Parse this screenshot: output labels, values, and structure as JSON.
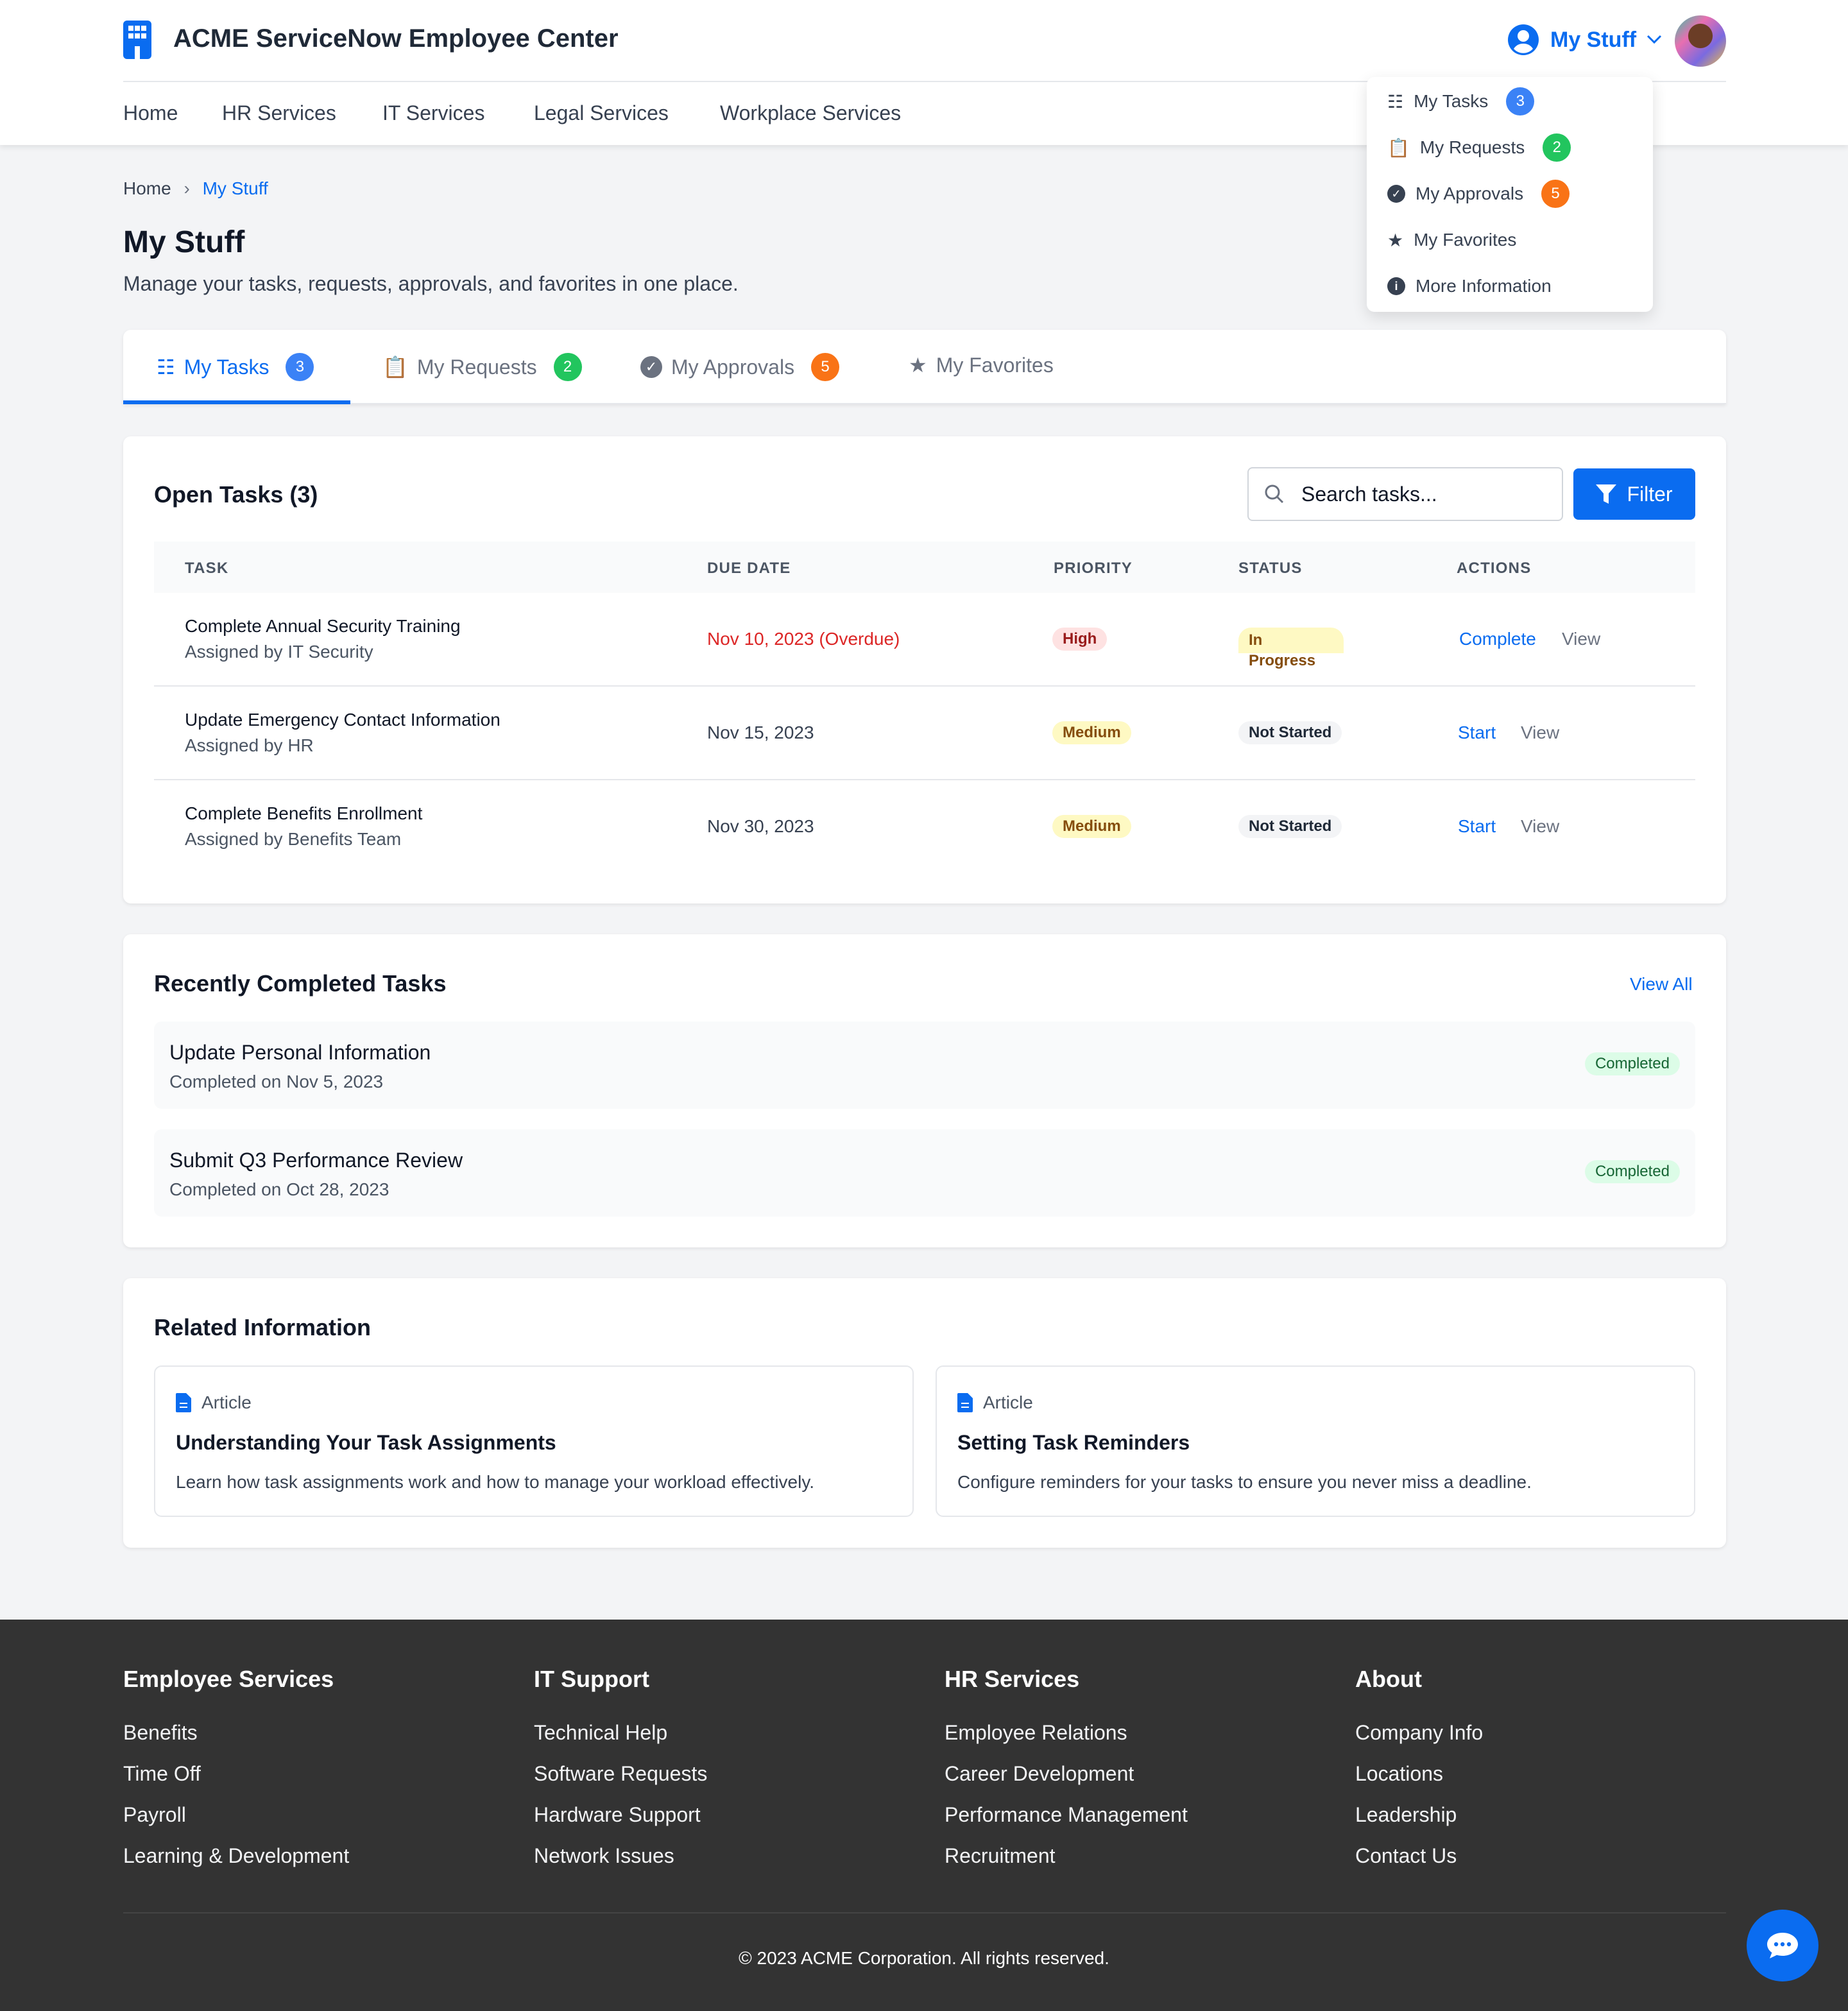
{
  "header": {
    "app_title": "ACME ServiceNow Employee Center",
    "nav": [
      "Home",
      "HR Services",
      "IT Services",
      "Legal Services",
      "Workplace Services"
    ],
    "my_stuff_label": "My Stuff",
    "accent": "#0a6cf0"
  },
  "dropdown": [
    {
      "label": "My Tasks",
      "count": "3",
      "icon": "tasks-icon"
    },
    {
      "label": "My Requests",
      "count": "2",
      "icon": "clipboard-icon"
    },
    {
      "label": "My Approvals",
      "count": "5",
      "icon": "check-circle-icon"
    },
    {
      "label": "My Favorites",
      "icon": "star-icon"
    },
    {
      "label": "More Information",
      "icon": "info-icon"
    }
  ],
  "breadcrumb": {
    "home": "Home",
    "current": "My Stuff"
  },
  "page": {
    "title": "My Stuff",
    "subtitle": "Manage your tasks, requests, approvals, and favorites in one place."
  },
  "tabs": [
    {
      "label": "My Tasks",
      "count": "3"
    },
    {
      "label": "My Requests",
      "count": "2"
    },
    {
      "label": "My Approvals",
      "count": "5"
    },
    {
      "label": "My Favorites"
    }
  ],
  "open_tasks": {
    "title": "Open Tasks (3)",
    "search_placeholder": "Search tasks...",
    "filter_label": "Filter",
    "columns": [
      "TASK",
      "DUE DATE",
      "PRIORITY",
      "STATUS",
      "ACTIONS"
    ],
    "rows": [
      {
        "task": "Complete Annual Security Training",
        "assigned": "Assigned by IT Security",
        "due": "Nov 10, 2023 (Overdue)",
        "priority": "High",
        "status": "In Progress",
        "action": "Complete",
        "view": "View"
      },
      {
        "task": "Update Emergency Contact Information",
        "assigned": "Assigned by HR",
        "due": "Nov 15, 2023",
        "priority": "Medium",
        "status": "Not Started",
        "action": "Start",
        "view": "View"
      },
      {
        "task": "Complete Benefits Enrollment",
        "assigned": "Assigned by Benefits Team",
        "due": "Nov 30, 2023",
        "priority": "Medium",
        "status": "Not Started",
        "action": "Start",
        "view": "View"
      }
    ]
  },
  "completed": {
    "title": "Recently Completed Tasks",
    "view_all": "View All",
    "items": [
      {
        "title": "Update Personal Information",
        "date": "Completed on Nov 5, 2023",
        "badge": "Completed"
      },
      {
        "title": "Submit Q3 Performance Review",
        "date": "Completed on Oct 28, 2023",
        "badge": "Completed"
      }
    ]
  },
  "related": {
    "title": "Related Information",
    "articles": [
      {
        "type": "Article",
        "title": "Understanding Your Task Assignments",
        "desc": "Learn how task assignments work and how to manage your workload effectively."
      },
      {
        "type": "Article",
        "title": "Setting Task Reminders",
        "desc": "Configure reminders for your tasks to ensure you never miss a deadline."
      }
    ]
  },
  "footer": {
    "columns": [
      {
        "title": "Employee Services",
        "links": [
          "Benefits",
          "Time Off",
          "Payroll",
          "Learning & Development"
        ]
      },
      {
        "title": "IT Support",
        "links": [
          "Technical Help",
          "Software Requests",
          "Hardware Support",
          "Network Issues"
        ]
      },
      {
        "title": "HR Services",
        "links": [
          "Employee Relations",
          "Career Development",
          "Performance Management",
          "Recruitment"
        ]
      },
      {
        "title": "About",
        "links": [
          "Company Info",
          "Locations",
          "Leadership",
          "Contact Us"
        ]
      }
    ],
    "copyright": "© 2023 ACME Corporation. All rights reserved."
  }
}
